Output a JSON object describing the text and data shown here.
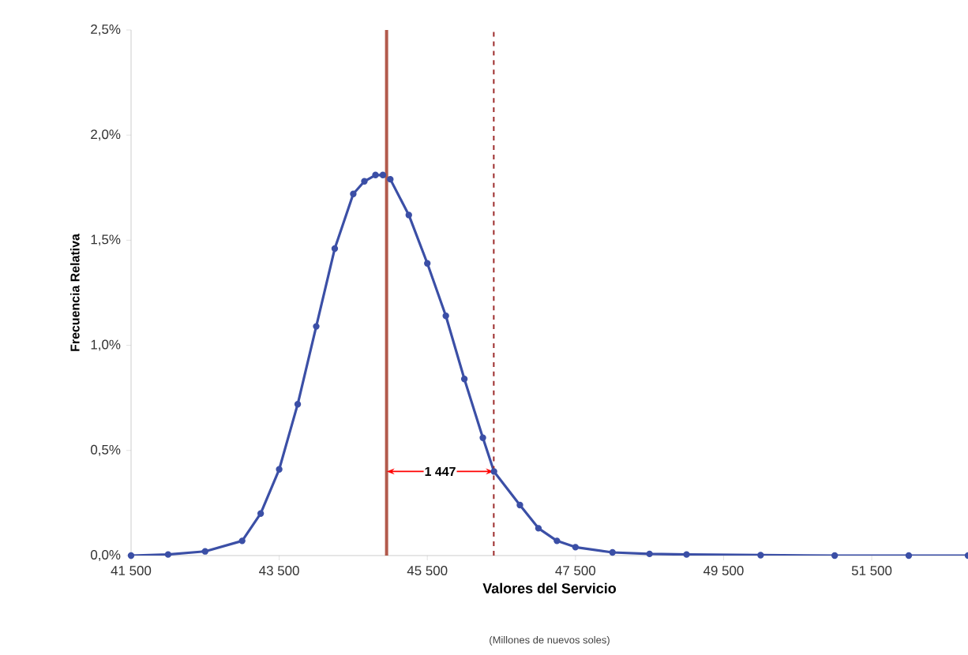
{
  "chart_data": {
    "type": "line",
    "xlabel": "Valores del Servicio",
    "ylabel": "Frecuencia Relativa",
    "annotations": [
      "(Millones de nuevos soles)",
      {
        "text": "1 447",
        "x": 45674,
        "y": 0.4
      }
    ],
    "x": [
      41500,
      42000,
      42500,
      43000,
      43250,
      43500,
      43750,
      44000,
      44250,
      44500,
      44650,
      44800,
      44900,
      45000,
      45250,
      45500,
      45750,
      46000,
      46250,
      46400,
      46750,
      47000,
      47250,
      47500,
      48000,
      48500,
      49000,
      50000,
      51000,
      52000,
      52800
    ],
    "series": [
      {
        "color": "#3b4fa6",
        "values": [
          0,
          0.005,
          0.02,
          0.07,
          0.2,
          0.41,
          0.72,
          1.09,
          1.46,
          1.72,
          1.78,
          1.81,
          1.81,
          1.79,
          1.62,
          1.39,
          1.14,
          0.84,
          0.56,
          0.4,
          0.24,
          0.13,
          0.07,
          0.04,
          0.015,
          0.008,
          0.005,
          0.002,
          0,
          0,
          0
        ]
      }
    ],
    "xlim": [
      41500,
      52800
    ],
    "ylim": [
      0,
      2.5
    ],
    "xticks": [
      {
        "value": 41500,
        "label": "41 500"
      },
      {
        "value": 43500,
        "label": "43 500"
      },
      {
        "value": 45500,
        "label": "45 500"
      },
      {
        "value": 47500,
        "label": "47 500"
      },
      {
        "value": 49500,
        "label": "49 500"
      },
      {
        "value": 51500,
        "label": "51 500"
      }
    ],
    "yticks": [
      {
        "value": 0,
        "label": "0,0%"
      },
      {
        "value": 0.5,
        "label": "0,5%"
      },
      {
        "value": 1,
        "label": "1,0%"
      },
      {
        "value": 1.5,
        "label": "1,5%"
      },
      {
        "value": 2,
        "label": "2,0%"
      },
      {
        "value": 2.5,
        "label": "2,5%"
      }
    ],
    "ref_lines": [
      {
        "axis": "x",
        "value": 44950,
        "color": "#b25a4c",
        "line_style": "solid"
      },
      {
        "axis": "x",
        "value": 46397,
        "color": "#9c2b2b",
        "line_style": "dashed"
      }
    ],
    "marker": "circle",
    "line_style": "solid"
  }
}
